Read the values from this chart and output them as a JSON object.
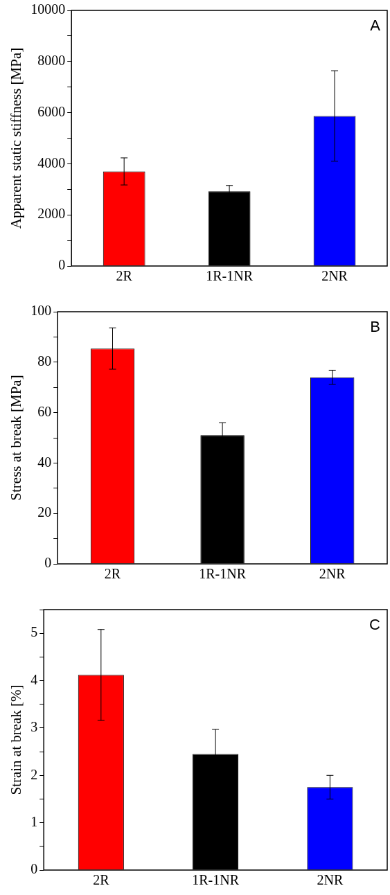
{
  "chart_data": [
    {
      "type": "bar",
      "categories": [
        "2R",
        "1R-1NR",
        "2NR"
      ],
      "values": [
        3700,
        2920,
        5870
      ],
      "colors": [
        "#ff0000",
        "#000000",
        "#0000ff"
      ],
      "errors": [
        530,
        230,
        1770
      ],
      "ylabel": "Apparent static stiffness [MPa]",
      "ylim": [
        0,
        10000
      ],
      "yticks": [
        0,
        {
          "value": 1000,
          "label": null
        },
        2000,
        {
          "value": 3000,
          "label": null
        },
        4000,
        {
          "value": 5000,
          "label": null
        },
        6000,
        {
          "value": 7000,
          "label": null
        },
        8000,
        {
          "value": 9000,
          "label": null
        },
        10000
      ],
      "annotations": [
        "A"
      ],
      "grid": false,
      "legend": false
    },
    {
      "type": "bar",
      "categories": [
        "2R",
        "1R-1NR",
        "2NR"
      ],
      "values": [
        85.4,
        51.0,
        74.0
      ],
      "colors": [
        "#ff0000",
        "#000000",
        "#0000ff"
      ],
      "errors": [
        8.2,
        5.0,
        2.8
      ],
      "ylabel": "Stress at break [MPa]",
      "ylim": [
        0,
        100
      ],
      "yticks": [
        0,
        {
          "value": 10,
          "label": null
        },
        20,
        {
          "value": 30,
          "label": null
        },
        40,
        {
          "value": 50,
          "label": null
        },
        60,
        {
          "value": 70,
          "label": null
        },
        80,
        {
          "value": 90,
          "label": null
        },
        100
      ],
      "annotations": [
        "B"
      ],
      "grid": false,
      "legend": false
    },
    {
      "type": "bar",
      "categories": [
        "2R",
        "1R-1NR",
        "2NR"
      ],
      "values": [
        4.12,
        2.45,
        1.75
      ],
      "colors": [
        "#ff0000",
        "#000000",
        "#0000ff"
      ],
      "errors": [
        0.96,
        0.52,
        0.25
      ],
      "ylabel": "Strain at break [%]",
      "ylim": [
        0,
        5.5
      ],
      "yticks": [
        0,
        {
          "value": 0.5,
          "label": null
        },
        1,
        {
          "value": 1.5,
          "label": null
        },
        2,
        {
          "value": 2.5,
          "label": null
        },
        3,
        {
          "value": 3.5,
          "label": null
        },
        4,
        {
          "value": 4.5,
          "label": null
        },
        5,
        {
          "value": 5.5,
          "label": null
        }
      ],
      "annotations": [
        "C"
      ],
      "grid": false,
      "legend": false
    }
  ]
}
